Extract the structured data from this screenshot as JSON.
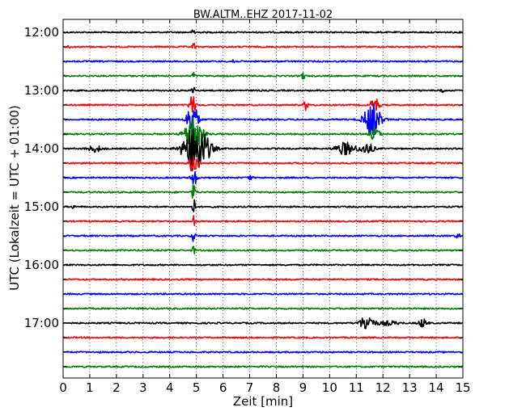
{
  "chart_data": {
    "type": "line",
    "title": "BW.ALTM..EHZ 2017-11-02",
    "xlabel": "Zeit  [min]",
    "ylabel": "UTC (Lokalzeit = UTC + 01:00)",
    "xlim": [
      0,
      15
    ],
    "x_ticks": [
      "0",
      "1",
      "2",
      "3",
      "4",
      "5",
      "6",
      "7",
      "8",
      "9",
      "10",
      "11",
      "12",
      "13",
      "14",
      "15"
    ],
    "y_tick_labels": [
      "12:00",
      "13:00",
      "14:00",
      "15:00",
      "16:00",
      "17:00"
    ],
    "grid": "vertical dotted at each minute",
    "trace_interval_minutes": 15,
    "color_cycle": [
      "#000000",
      "#ff0000",
      "#0000ff",
      "#008000"
    ],
    "traces": [
      {
        "start": "12:00",
        "color": "#000000"
      },
      {
        "start": "12:15",
        "color": "#ff0000"
      },
      {
        "start": "12:30",
        "color": "#0000ff"
      },
      {
        "start": "12:45",
        "color": "#008000"
      },
      {
        "start": "13:00",
        "color": "#000000"
      },
      {
        "start": "13:15",
        "color": "#ff0000"
      },
      {
        "start": "13:30",
        "color": "#0000ff"
      },
      {
        "start": "13:45",
        "color": "#008000"
      },
      {
        "start": "14:00",
        "color": "#000000"
      },
      {
        "start": "14:15",
        "color": "#ff0000"
      },
      {
        "start": "14:30",
        "color": "#0000ff"
      },
      {
        "start": "14:45",
        "color": "#008000"
      },
      {
        "start": "15:00",
        "color": "#000000"
      },
      {
        "start": "15:15",
        "color": "#ff0000"
      },
      {
        "start": "15:30",
        "color": "#0000ff"
      },
      {
        "start": "15:45",
        "color": "#008000"
      },
      {
        "start": "16:00",
        "color": "#000000"
      },
      {
        "start": "16:15",
        "color": "#ff0000"
      },
      {
        "start": "16:30",
        "color": "#0000ff"
      },
      {
        "start": "16:45",
        "color": "#008000"
      },
      {
        "start": "17:00",
        "color": "#000000"
      },
      {
        "start": "17:15",
        "color": "#ff0000"
      },
      {
        "start": "17:30",
        "color": "#0000ff"
      },
      {
        "start": "17:45",
        "color": "#008000"
      }
    ],
    "events": [
      {
        "trace": 0,
        "minute": 4.9,
        "amplitude": 2.0,
        "width": 0.05
      },
      {
        "trace": 1,
        "minute": 0.2,
        "amplitude": 0.5,
        "width": 0.05
      },
      {
        "trace": 1,
        "minute": 4.9,
        "amplitude": 1.5,
        "width": 0.05
      },
      {
        "trace": 2,
        "minute": 6.4,
        "amplitude": 1.0,
        "width": 0.06
      },
      {
        "trace": 3,
        "minute": 4.9,
        "amplitude": 1.5,
        "width": 0.05
      },
      {
        "trace": 3,
        "minute": 9.0,
        "amplitude": 1.2,
        "width": 0.06
      },
      {
        "trace": 4,
        "minute": 4.9,
        "amplitude": 2.0,
        "width": 0.06
      },
      {
        "trace": 4,
        "minute": 14.2,
        "amplitude": 1.3,
        "width": 0.06
      },
      {
        "trace": 5,
        "minute": 4.85,
        "amplitude": 3.0,
        "width": 0.12
      },
      {
        "trace": 5,
        "minute": 9.1,
        "amplitude": 1.6,
        "width": 0.08
      },
      {
        "trace": 5,
        "minute": 11.7,
        "amplitude": 2.5,
        "width": 0.15
      },
      {
        "trace": 6,
        "minute": 4.85,
        "amplitude": 5.0,
        "width": 0.2
      },
      {
        "trace": 6,
        "minute": 11.6,
        "amplitude": 5.0,
        "width": 0.3
      },
      {
        "trace": 7,
        "minute": 4.9,
        "amplitude": 6.0,
        "width": 0.3
      },
      {
        "trace": 7,
        "minute": 11.7,
        "amplitude": 2.5,
        "width": 0.15
      },
      {
        "trace": 8,
        "minute": 1.2,
        "amplitude": 1.0,
        "width": 0.25
      },
      {
        "trace": 8,
        "minute": 5.0,
        "amplitude": 8.0,
        "width": 0.45
      },
      {
        "trace": 8,
        "minute": 10.6,
        "amplitude": 2.0,
        "width": 0.35
      },
      {
        "trace": 8,
        "minute": 11.4,
        "amplitude": 1.7,
        "width": 0.25
      },
      {
        "trace": 9,
        "minute": 4.9,
        "amplitude": 3.5,
        "width": 0.15
      },
      {
        "trace": 10,
        "minute": 4.9,
        "amplitude": 3.0,
        "width": 0.1
      },
      {
        "trace": 10,
        "minute": 7.0,
        "amplitude": 0.8,
        "width": 0.08
      },
      {
        "trace": 11,
        "minute": 4.9,
        "amplitude": 2.5,
        "width": 0.08
      },
      {
        "trace": 12,
        "minute": 0.4,
        "amplitude": 0.6,
        "width": 0.06
      },
      {
        "trace": 12,
        "minute": 4.9,
        "amplitude": 2.5,
        "width": 0.06
      },
      {
        "trace": 13,
        "minute": 4.9,
        "amplitude": 2.0,
        "width": 0.06
      },
      {
        "trace": 14,
        "minute": 4.9,
        "amplitude": 2.0,
        "width": 0.06
      },
      {
        "trace": 14,
        "minute": 14.8,
        "amplitude": 0.8,
        "width": 0.08
      },
      {
        "trace": 15,
        "minute": 4.9,
        "amplitude": 1.5,
        "width": 0.05
      },
      {
        "trace": 20,
        "minute": 11.4,
        "amplitude": 2.5,
        "width": 0.25
      },
      {
        "trace": 20,
        "minute": 13.5,
        "amplitude": 1.3,
        "width": 0.15
      },
      {
        "trace": 20,
        "minute": 12.2,
        "amplitude": 0.6,
        "width": 0.4
      }
    ]
  }
}
